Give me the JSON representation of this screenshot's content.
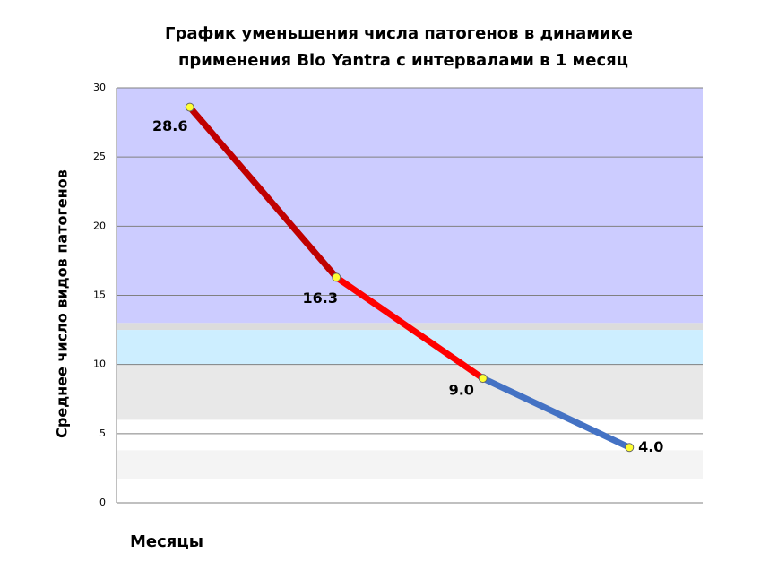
{
  "chart_data": {
    "type": "line",
    "title": [
      "График уменьшения числа патогенов в динамике",
      "применения Bio Yantra  с интервалами в 1 месяц"
    ],
    "ylabel": "Среднее число видов патогенов",
    "xlabel": "Месяцы",
    "categories": [
      null,
      null,
      null,
      null
    ],
    "series": [
      {
        "values": [
          28.6,
          16.3,
          9.0,
          4.0
        ],
        "value_labels": [
          "28.6",
          "16.3",
          "9.0",
          "4.0"
        ],
        "segment_colors": [
          "#c00000",
          "#ff0000",
          "#4472c4"
        ],
        "marker_color": "#ffff33"
      }
    ],
    "ylim": [
      0,
      30
    ],
    "yticks": [
      0,
      5,
      10,
      15,
      20,
      25,
      30
    ],
    "grid": true,
    "bands": [
      {
        "from": 13,
        "to": 30,
        "color": "#ccccff"
      },
      {
        "from": 12.5,
        "to": 13,
        "color": "#dcdcdc"
      },
      {
        "from": 10,
        "to": 12.5,
        "color": "#cdeeff"
      },
      {
        "from": 6,
        "to": 10,
        "color": "#e8e8e8"
      },
      {
        "from": 1.75,
        "to": 3.8,
        "color": "#f4f4f4"
      }
    ]
  }
}
